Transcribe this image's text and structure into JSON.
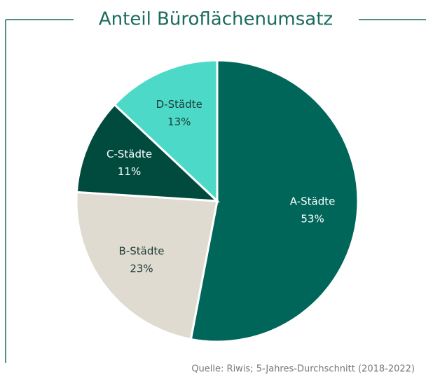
{
  "chart_data": {
    "type": "pie",
    "title": "Anteil Büroflächenumsatz",
    "categories": [
      "A-Städte",
      "B-Städte",
      "C-Städte",
      "D-Städte"
    ],
    "values": [
      53,
      23,
      11,
      13
    ],
    "value_labels": [
      "53%",
      "23%",
      "11%",
      "13%"
    ],
    "colors": [
      "#00665a",
      "#e0dbd0",
      "#004a3e",
      "#4dd9c8"
    ],
    "source": "Quelle: Riwis; 5-Jahres-Durchschnitt (2018-2022)"
  }
}
